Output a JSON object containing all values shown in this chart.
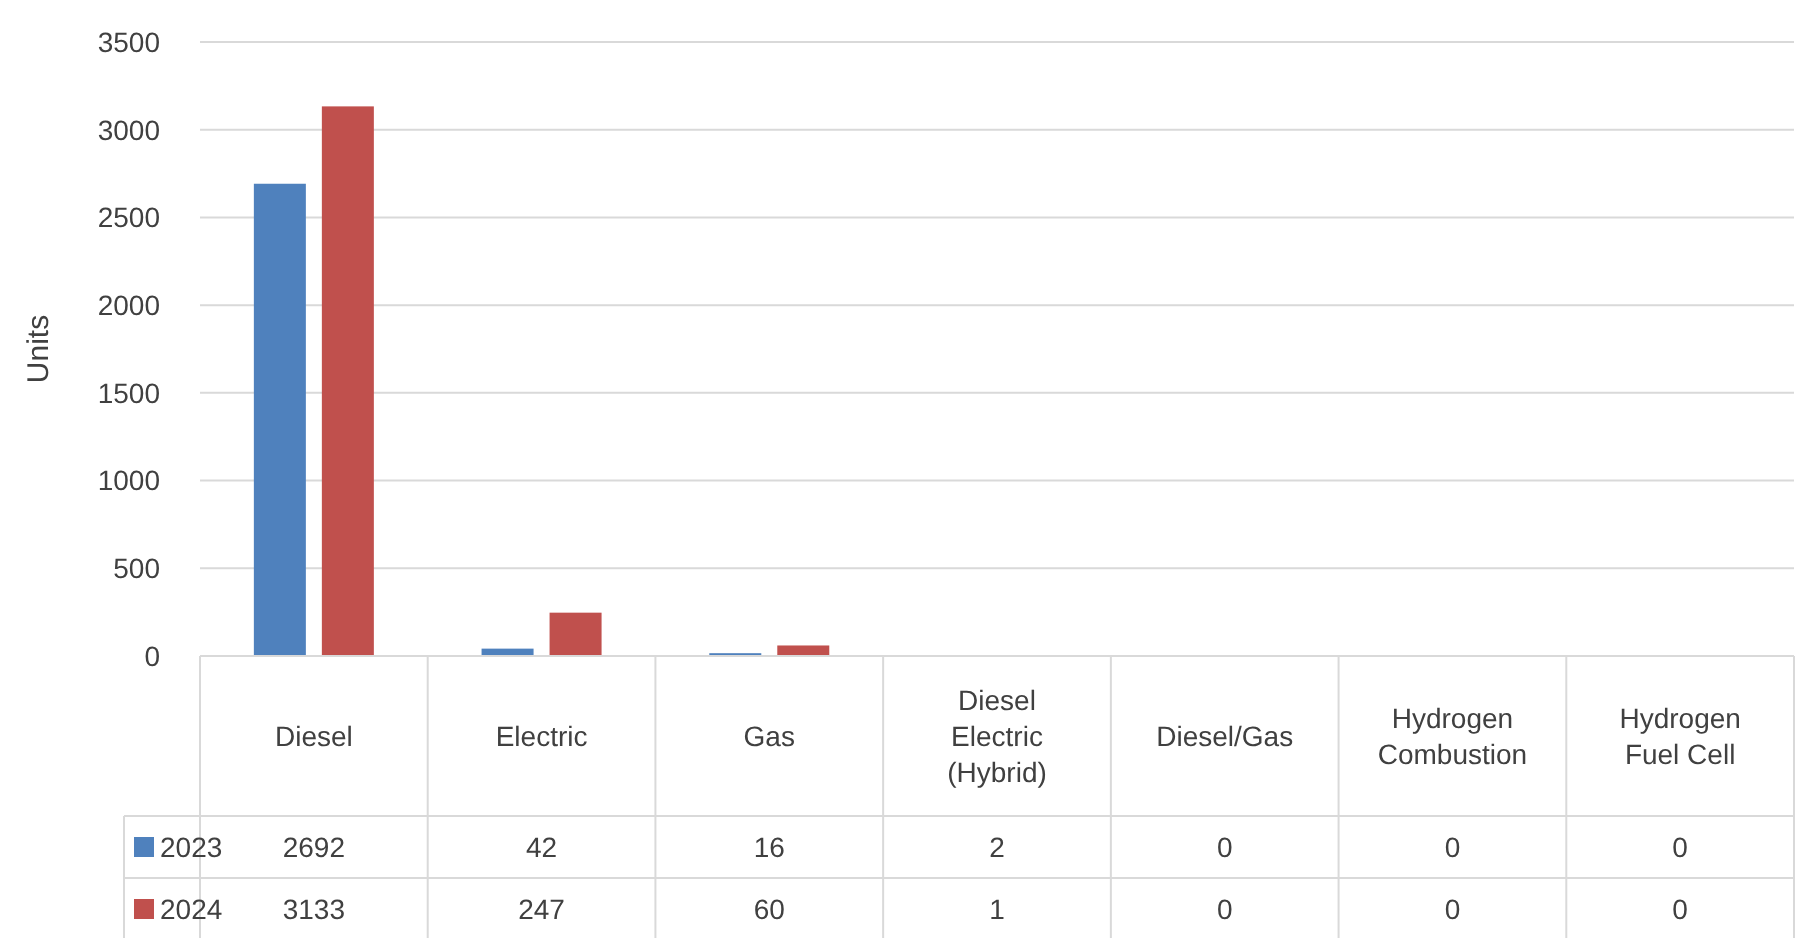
{
  "chart_data": {
    "type": "bar",
    "ylabel": "Units",
    "categories": [
      "Diesel",
      "Electric",
      "Gas",
      "Diesel Electric (Hybrid)",
      "Diesel/Gas",
      "Hydrogen Combustion",
      "Hydrogen Fuel Cell"
    ],
    "series": [
      {
        "name": "2023",
        "color": "#4f81bd",
        "values": [
          2692,
          42,
          16,
          2,
          0,
          0,
          0
        ]
      },
      {
        "name": "2024",
        "color": "#c0504d",
        "values": [
          3133,
          247,
          60,
          1,
          0,
          0,
          0
        ]
      }
    ],
    "ylim": [
      0,
      3500
    ],
    "yticks": [
      0,
      500,
      1000,
      1500,
      2000,
      2500,
      3000,
      3500
    ],
    "grid": "y",
    "legend": "bottom",
    "data_labels": true
  }
}
